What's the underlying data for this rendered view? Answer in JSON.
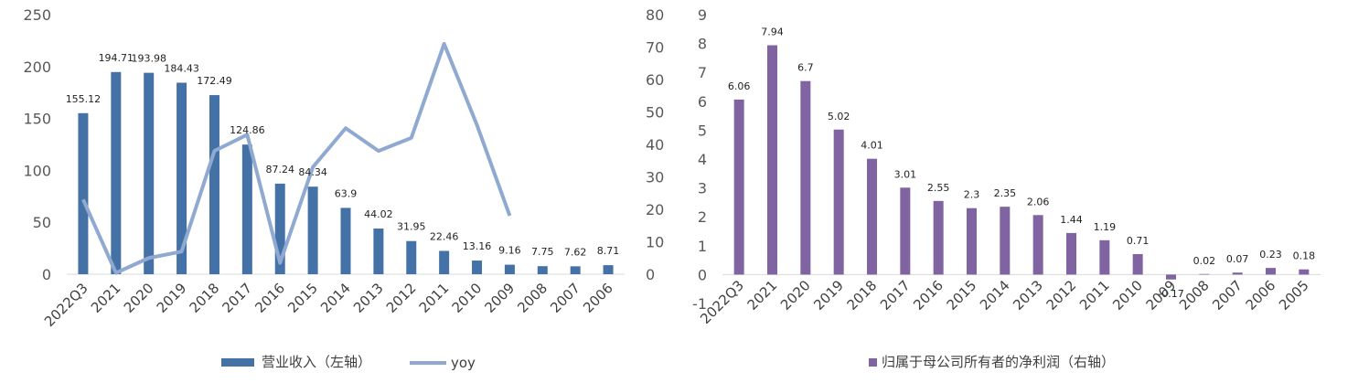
{
  "colors": {
    "revenue_bar": "#4472a6",
    "yoy_line": "#8fa9d1",
    "profit_bar": "#8064a2",
    "axis_line": "#d9d9d9",
    "tick_text": "#595959"
  },
  "chart_data": [
    {
      "type": "bar",
      "categories": [
        "2022Q3",
        "2021",
        "2020",
        "2019",
        "2018",
        "2017",
        "2016",
        "2015",
        "2014",
        "2013",
        "2012",
        "2011",
        "2010",
        "2009",
        "2008",
        "2007",
        "2006"
      ],
      "series": [
        {
          "name": "营业收入（左轴）",
          "axis": "left",
          "kind": "bar",
          "values": [
            155.12,
            194.71,
            193.98,
            184.43,
            172.49,
            124.86,
            87.24,
            84.34,
            63.9,
            44.02,
            31.95,
            22.46,
            13.16,
            9.16,
            7.75,
            7.62,
            8.71
          ],
          "labels": [
            "155.12",
            "194.71",
            "193.98",
            "184.43",
            "172.49",
            "124.86",
            "87.24",
            "84.34",
            "63.9",
            "44.02",
            "31.95",
            "22.46",
            "13.16",
            "9.16",
            "7.75",
            "7.62",
            "8.71"
          ]
        },
        {
          "name": "yoy",
          "axis": "right",
          "kind": "line",
          "values": [
            23,
            0.4,
            5,
            7,
            38,
            43,
            3.5,
            33,
            45,
            38,
            42,
            71,
            46,
            18,
            null,
            null,
            null
          ]
        }
      ],
      "left_axis": {
        "ticks": [
          "0",
          "50",
          "100",
          "150",
          "200",
          "250"
        ],
        "range": [
          0,
          250
        ]
      },
      "right_axis": {
        "ticks": [
          "0",
          "10",
          "20",
          "30",
          "40",
          "50",
          "60",
          "70",
          "80"
        ],
        "range": [
          0,
          80
        ]
      },
      "legend": {
        "position": "bottom",
        "labels": [
          "营业收入（左轴）",
          "yoy"
        ]
      }
    },
    {
      "type": "bar",
      "categories": [
        "2022Q3",
        "2021",
        "2020",
        "2019",
        "2018",
        "2017",
        "2016",
        "2015",
        "2014",
        "2013",
        "2012",
        "2011",
        "2010",
        "2009",
        "2008",
        "2007",
        "2006",
        "2005"
      ],
      "series": [
        {
          "name": "归属于母公司所有者的净利润（右轴）",
          "kind": "bar",
          "values": [
            6.06,
            7.94,
            6.7,
            5.02,
            4.01,
            3.01,
            2.55,
            2.3,
            2.35,
            2.06,
            1.44,
            1.19,
            0.71,
            -0.17,
            0.02,
            0.07,
            0.23,
            0.18
          ],
          "labels": [
            "6.06",
            "7.94",
            "6.7",
            "5.02",
            "4.01",
            "3.01",
            "2.55",
            "2.3",
            "2.35",
            "2.06",
            "1.44",
            "1.19",
            "0.71",
            "-0.17",
            "0.02",
            "0.07",
            "0.23",
            "0.18"
          ]
        }
      ],
      "y_axis": {
        "ticks": [
          "-1",
          "0",
          "1",
          "2",
          "3",
          "4",
          "5",
          "6",
          "7",
          "8",
          "9"
        ],
        "range": [
          -1,
          9
        ]
      },
      "legend": {
        "position": "bottom",
        "labels": [
          "归属于母公司所有者的净利润（右轴）"
        ]
      }
    }
  ]
}
